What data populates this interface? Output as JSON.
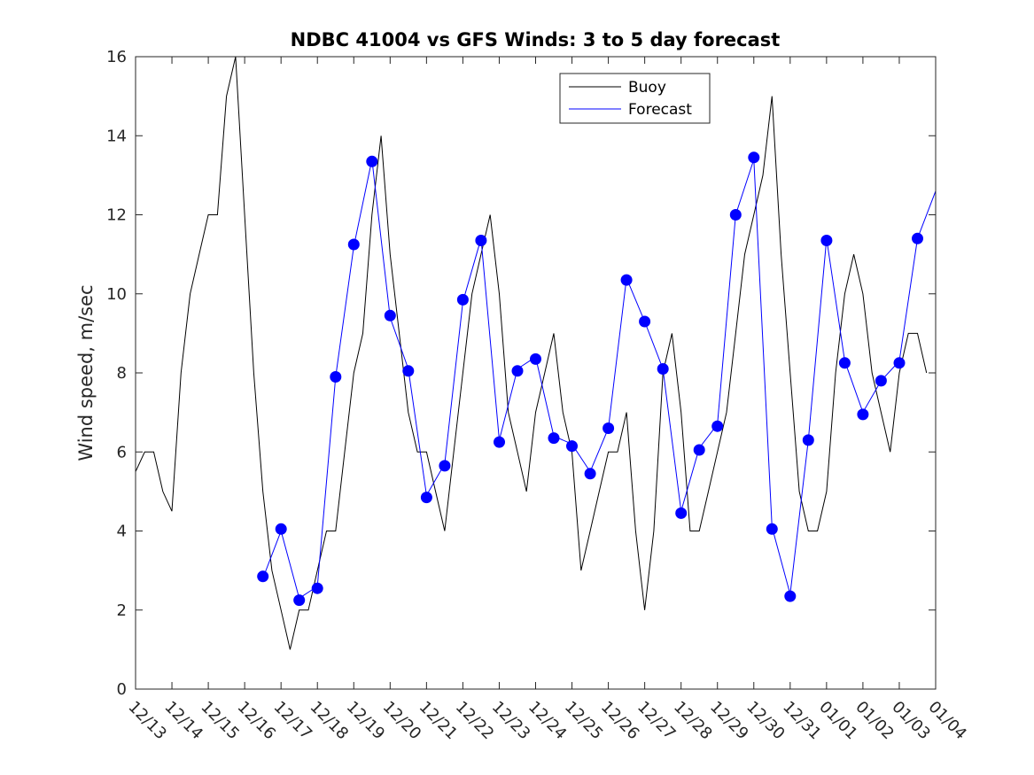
{
  "chart_data": {
    "type": "line",
    "title": "NDBC 41004 vs GFS Winds: 3 to 5 day forecast",
    "xlabel": "",
    "ylabel": "Wind speed, m/sec",
    "ylim": [
      0,
      16
    ],
    "yticks": [
      0,
      2,
      4,
      6,
      8,
      10,
      12,
      14,
      16
    ],
    "xlim": [
      "12/13",
      "01/04"
    ],
    "xtick_labels": [
      "12/13",
      "12/14",
      "12/15",
      "12/16",
      "12/17",
      "12/18",
      "12/19",
      "12/20",
      "12/21",
      "12/22",
      "12/23",
      "12/24",
      "12/25",
      "12/26",
      "12/27",
      "12/28",
      "12/29",
      "12/30",
      "12/31",
      "01/01",
      "01/02",
      "01/03",
      "01/04"
    ],
    "grid": false,
    "legend": {
      "placement": "top-center",
      "entries": [
        {
          "label": "Buoy",
          "color": "#000000"
        },
        {
          "label": "Forecast",
          "color": "#0000ff"
        }
      ]
    },
    "series": [
      {
        "name": "Buoy",
        "color": "#000000",
        "x": [
          "12/13 00h",
          "12/13 06h",
          "12/13 12h",
          "12/13 18h",
          "12/14 00h",
          "12/14 06h",
          "12/14 12h",
          "12/14 18h",
          "12/15 00h",
          "12/15 06h",
          "12/15 12h",
          "12/15 18h",
          "12/16 00h",
          "12/16 06h",
          "12/16 12h",
          "12/16 18h",
          "12/17 00h",
          "12/17 06h",
          "12/17 12h",
          "12/17 18h",
          "12/18 00h",
          "12/18 06h",
          "12/18 12h",
          "12/18 18h",
          "12/19 00h",
          "12/19 06h",
          "12/19 12h",
          "12/19 18h",
          "12/20 00h",
          "12/20 06h",
          "12/20 12h",
          "12/20 18h",
          "12/21 00h",
          "12/21 06h",
          "12/21 12h",
          "12/21 18h",
          "12/22 00h",
          "12/22 06h",
          "12/22 12h",
          "12/22 18h",
          "12/23 00h",
          "12/23 06h",
          "12/23 12h",
          "12/23 18h",
          "12/24 00h",
          "12/24 06h",
          "12/24 12h",
          "12/24 18h",
          "12/25 00h",
          "12/25 06h",
          "12/25 12h",
          "12/25 18h",
          "12/26 00h",
          "12/26 06h",
          "12/26 12h",
          "12/26 18h",
          "12/27 00h",
          "12/27 06h",
          "12/27 12h",
          "12/27 18h",
          "12/28 00h",
          "12/28 06h",
          "12/28 12h",
          "12/28 18h",
          "12/29 00h",
          "12/29 06h",
          "12/29 12h",
          "12/29 18h",
          "12/30 00h",
          "12/30 06h",
          "12/30 12h",
          "12/30 18h",
          "12/31 00h",
          "12/31 06h",
          "12/31 12h",
          "12/31 18h",
          "01/01 00h",
          "01/01 06h",
          "01/01 12h",
          "01/01 18h",
          "01/02 00h",
          "01/02 06h",
          "01/02 12h",
          "01/02 18h",
          "01/03 00h",
          "01/03 06h",
          "01/03 12h",
          "01/03 18h"
        ],
        "values": [
          5.5,
          6,
          6,
          5,
          4.5,
          8,
          10,
          11,
          12,
          12,
          15,
          16,
          12,
          8,
          5,
          3,
          2,
          1,
          2,
          2,
          3,
          4,
          4,
          6,
          8,
          9,
          12,
          14,
          11,
          9,
          7,
          6,
          6,
          5,
          4,
          6,
          8,
          10,
          11,
          12,
          10,
          7,
          6,
          5,
          7,
          8,
          9,
          7,
          6,
          3,
          4,
          5,
          6,
          6,
          7,
          4,
          2,
          4,
          8,
          9,
          7,
          4,
          4,
          5,
          6,
          7,
          9,
          11,
          12,
          13,
          15,
          11,
          8,
          5,
          4,
          4,
          5,
          8,
          10,
          11,
          10,
          8,
          7,
          6,
          8,
          9,
          9,
          8
        ]
      },
      {
        "name": "Forecast",
        "color": "#0000ff",
        "x": [
          "12/16 12h",
          "12/17 00h",
          "12/17 12h",
          "12/18 00h",
          "12/18 12h",
          "12/19 00h",
          "12/19 12h",
          "12/20 00h",
          "12/20 12h",
          "12/21 00h",
          "12/21 12h",
          "12/22 00h",
          "12/22 12h",
          "12/23 00h",
          "12/23 12h",
          "12/24 00h",
          "12/24 12h",
          "12/25 00h",
          "12/25 12h",
          "12/26 00h",
          "12/26 12h",
          "12/27 00h",
          "12/27 12h",
          "12/28 00h",
          "12/28 12h",
          "12/29 00h",
          "12/29 12h",
          "12/30 00h",
          "12/30 12h",
          "12/31 00h",
          "12/31 12h",
          "01/01 00h",
          "01/01 12h",
          "01/02 00h",
          "01/02 12h",
          "01/03 00h",
          "01/03 12h",
          "01/04 00h"
        ],
        "values": [
          2.8,
          4,
          2.3,
          2.6,
          7.9,
          11.2,
          13.4,
          9.4,
          8.1,
          4.9,
          5.7,
          9.8,
          11.4,
          6.3,
          8.1,
          8.4,
          6.4,
          6.2,
          5.5,
          6.6,
          10.4,
          9.3,
          8.1,
          4.5,
          6.1,
          6.7,
          12,
          13.4,
          4.1,
          2.4,
          6.3,
          11.4,
          8.3,
          7,
          7.8,
          8.3,
          11.4,
          12.6
        ]
      },
      {
        "name": "Forecast",
        "color": "#0000ff",
        "markers": true,
        "x": [
          "12/16 12h",
          "12/17 00h",
          "12/17 12h",
          "12/18 00h",
          "12/18 12h",
          "12/19 00h",
          "12/19 12h",
          "12/20 00h",
          "12/20 12h",
          "12/21 00h",
          "12/21 12h",
          "12/22 00h",
          "12/22 12h",
          "12/23 00h",
          "12/23 12h",
          "12/24 00h",
          "12/24 12h",
          "12/25 00h",
          "12/25 12h",
          "12/26 00h",
          "12/26 12h",
          "12/27 00h",
          "12/27 12h",
          "12/28 00h",
          "12/28 12h",
          "12/29 00h",
          "12/29 12h",
          "12/30 00h",
          "12/30 12h",
          "12/31 00h",
          "12/31 12h",
          "01/01 00h",
          "01/01 12h",
          "01/02 00h",
          "01/02 12h",
          "01/03 00h",
          "01/03 12h"
        ],
        "values": [
          2.85,
          4.05,
          2.25,
          2.55,
          7.9,
          11.25,
          13.35,
          9.45,
          8.05,
          4.85,
          5.65,
          9.85,
          11.35,
          6.25,
          8.05,
          8.35,
          6.35,
          6.15,
          5.45,
          6.6,
          10.35,
          9.3,
          8.1,
          4.45,
          6.05,
          6.65,
          12.0,
          13.45,
          4.05,
          2.35,
          6.3,
          11.35,
          8.25,
          6.95,
          7.8,
          8.25,
          11.4
        ]
      }
    ]
  }
}
